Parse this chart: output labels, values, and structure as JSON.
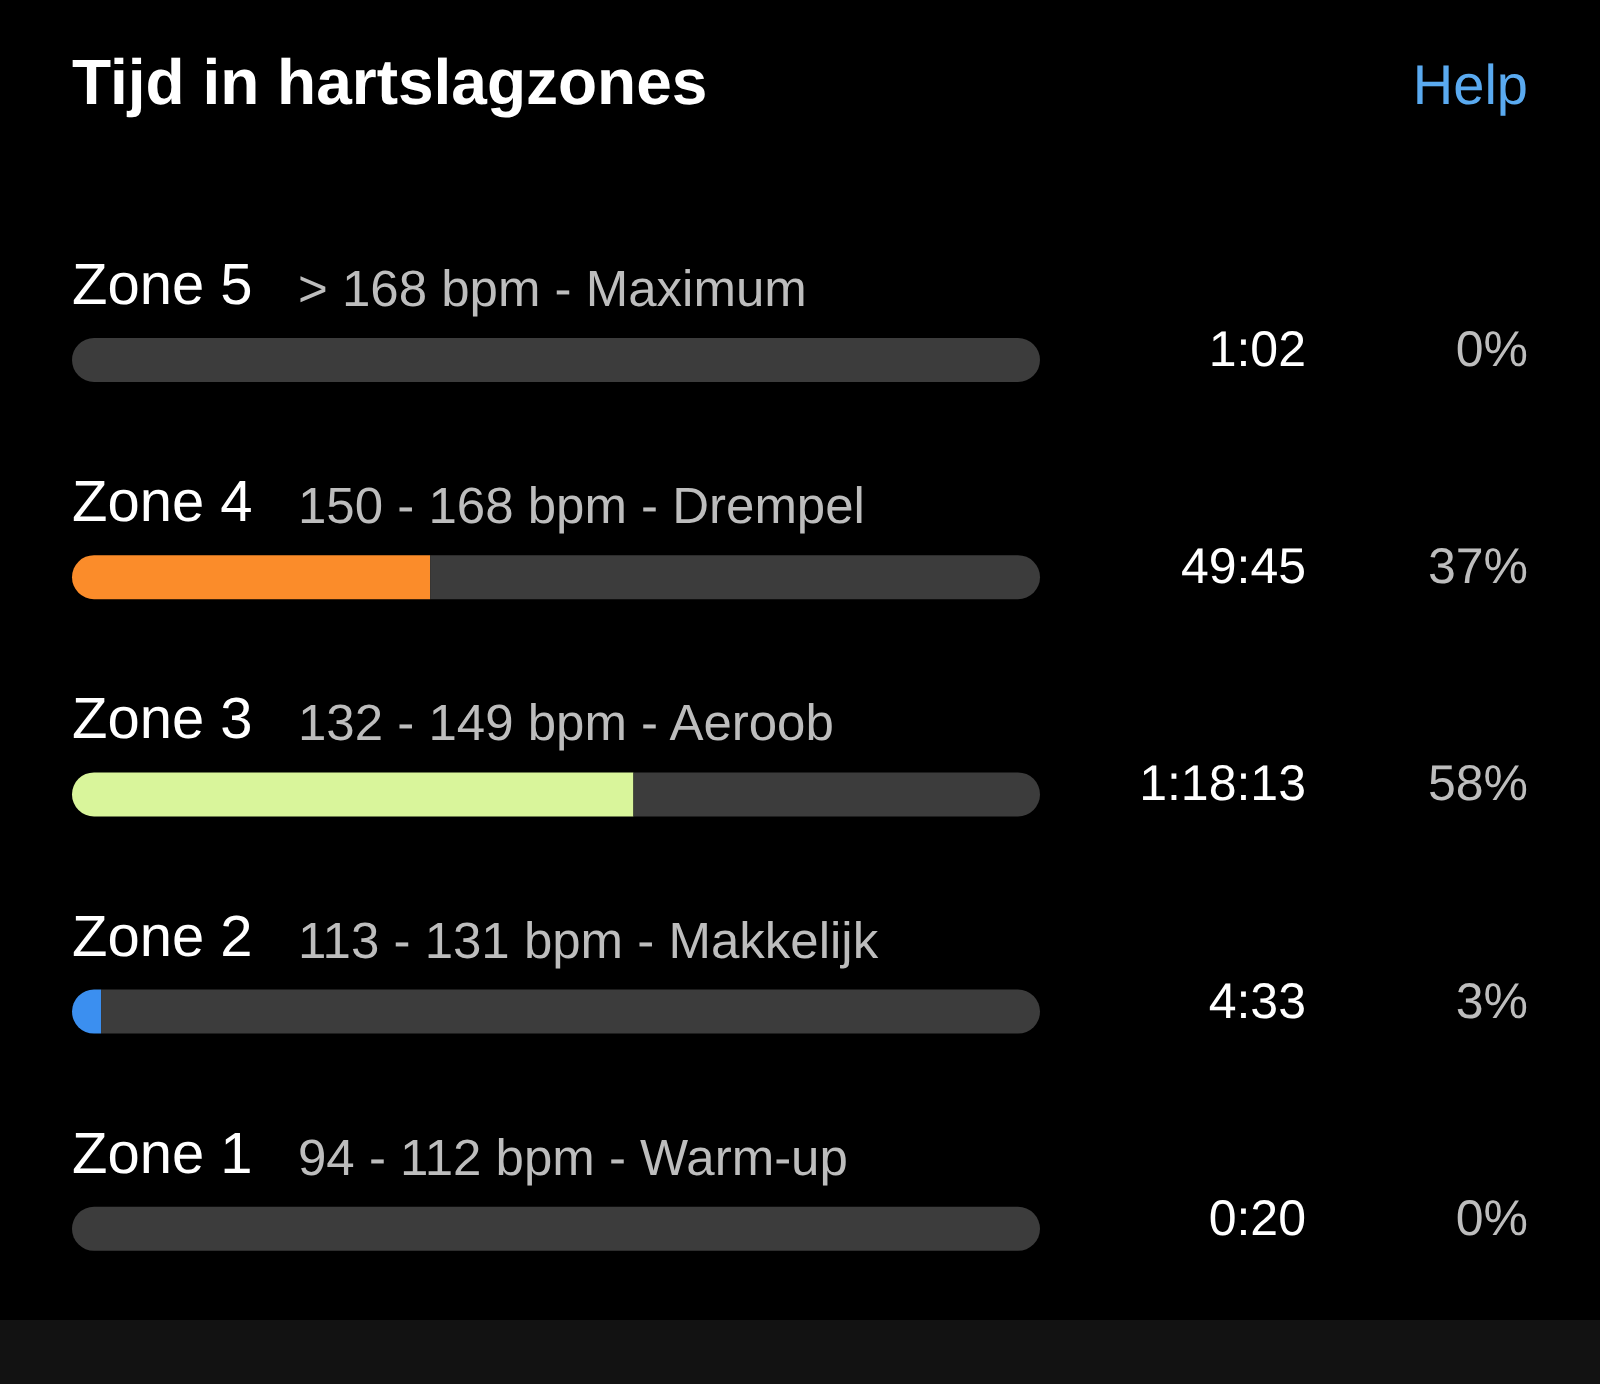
{
  "chart_data": {
    "type": "bar",
    "orientation": "horizontal",
    "stacked": true,
    "title": "Tijd in hartslagzones",
    "categories": [
      "Zone 5",
      "Zone 4",
      "Zone 3",
      "Zone 2",
      "Zone 1"
    ],
    "series": [
      {
        "values": [
          0,
          37,
          58,
          3,
          0
        ],
        "colors": [
          null,
          "#fb8c2a",
          "#d9f59b",
          "#3b8ff0",
          null
        ],
        "value_labels": [
          "0%",
          "37%",
          "58%",
          "3%",
          "0%"
        ]
      },
      {
        "values": [
          100,
          63,
          42,
          97,
          100
        ],
        "color": "#3c3c3c"
      }
    ],
    "xlim": [
      0,
      100
    ],
    "tick_labels": "y",
    "annotations": [
      "Help",
      "> 168 bpm - Maximum",
      "1:02",
      "150 - 168 bpm - Drempel",
      "49:45",
      "132 - 149 bpm - Aeroob",
      "1:18:13",
      "113 - 131 bpm - Makkelijk",
      "4:33",
      "94 - 112 bpm - Warm-up",
      "0:20"
    ]
  }
}
